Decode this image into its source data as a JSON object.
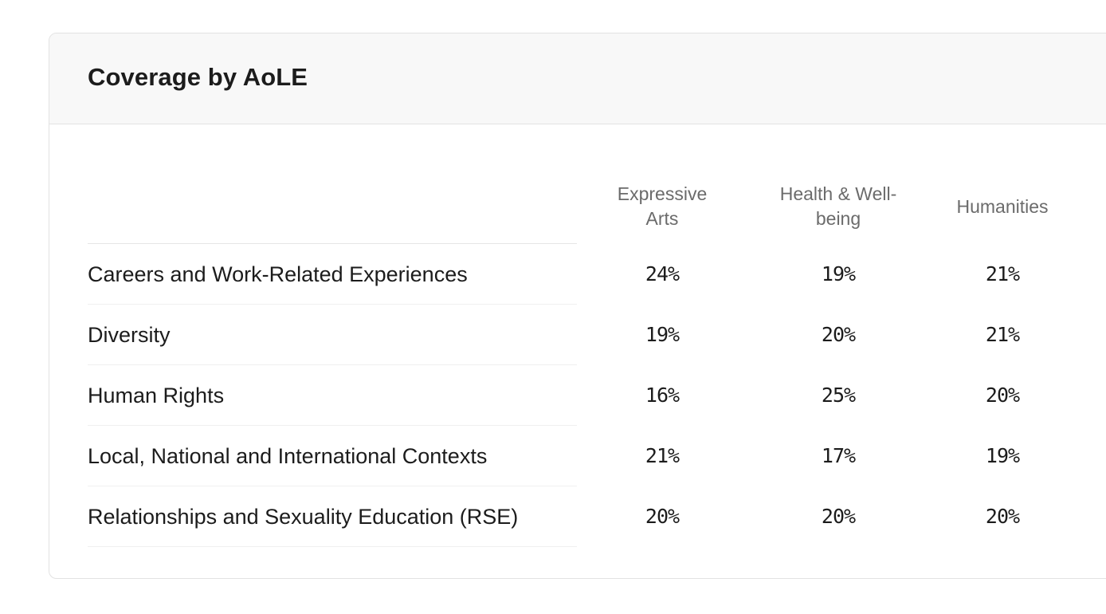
{
  "card": {
    "title": "Coverage by AoLE"
  },
  "table": {
    "columns": [
      {
        "label_line1": "Expressive",
        "label_line2": "Arts"
      },
      {
        "label_line1": "Health & Well-",
        "label_line2": "being"
      },
      {
        "label_line1": "Humanities",
        "label_line2": ""
      }
    ],
    "rows": [
      {
        "label": "Careers and Work-Related Experiences",
        "values": [
          "24%",
          "19%",
          "21%"
        ]
      },
      {
        "label": "Diversity",
        "values": [
          "19%",
          "20%",
          "21%"
        ]
      },
      {
        "label": "Human Rights",
        "values": [
          "16%",
          "25%",
          "20%"
        ]
      },
      {
        "label": "Local, National and International Contexts",
        "values": [
          "21%",
          "17%",
          "19%"
        ]
      },
      {
        "label": "Relationships and Sexuality Education (RSE)",
        "values": [
          "20%",
          "20%",
          "20%"
        ]
      }
    ]
  },
  "colors": {
    "header_bg": "#f8f8f8",
    "border": "#e2e2e2",
    "row_divider": "#f0f0f0",
    "text": "#1c1c1c",
    "column_header_text": "#6b6b6b"
  }
}
